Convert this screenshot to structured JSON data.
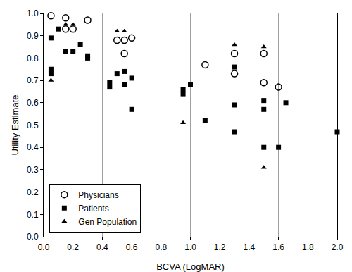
{
  "chart_data": {
    "type": "scatter",
    "x_label": "BCVA (LogMAR)",
    "y_label": "Utility Estimate",
    "xlim": [
      0,
      2.0
    ],
    "ylim": [
      0,
      1.0
    ],
    "xticks": [
      {
        "value": 0,
        "label": "0.0"
      },
      {
        "value": 0.2,
        "label": "0.2"
      },
      {
        "value": 0.4,
        "label": "0.4"
      },
      {
        "value": 0.6,
        "label": "0.6"
      },
      {
        "value": 0.8,
        "label": "0.8"
      },
      {
        "value": 1.0,
        "label": "1.0"
      },
      {
        "value": 1.2,
        "label": "1.2"
      },
      {
        "value": 1.4,
        "label": "1.4"
      },
      {
        "value": 1.6,
        "label": "1.6"
      },
      {
        "value": 1.8,
        "label": "1.8"
      },
      {
        "value": 2.0,
        "label": "2.0"
      }
    ],
    "yticks": [
      {
        "value": 0,
        "label": "0.0"
      },
      {
        "value": 0.1,
        "label": "0.1"
      },
      {
        "value": 0.2,
        "label": "0.2"
      },
      {
        "value": 0.3,
        "label": "0.3"
      },
      {
        "value": 0.4,
        "label": "0.4"
      },
      {
        "value": 0.5,
        "label": "0.5"
      },
      {
        "value": 0.6,
        "label": "0.6"
      },
      {
        "value": 0.7,
        "label": "0.7"
      },
      {
        "value": 0.8,
        "label": "0.8"
      },
      {
        "value": 0.9,
        "label": "0.9"
      },
      {
        "value": 1.0,
        "label": "1.0"
      }
    ],
    "grid": "x",
    "legend": "lower left",
    "series": [
      {
        "name": "Physicians",
        "color": "#000000",
        "marker": "circle-open",
        "x": [
          0.05,
          0.15,
          0.15,
          0.2,
          0.3,
          0.5,
          0.55,
          0.6,
          0.55,
          1.1,
          1.3,
          1.3,
          1.5,
          1.5,
          1.6
        ],
        "values": [
          0.99,
          0.98,
          0.93,
          0.93,
          0.97,
          0.88,
          0.88,
          0.89,
          0.82,
          0.77,
          0.82,
          0.73,
          0.82,
          0.69,
          0.67
        ]
      },
      {
        "name": "Patients",
        "color": "#000000",
        "marker": "square",
        "x": [
          0.05,
          0.05,
          0.05,
          0.1,
          0.15,
          0.2,
          0.25,
          0.3,
          0.3,
          0.45,
          0.45,
          0.5,
          0.55,
          0.55,
          0.6,
          0.6,
          0.95,
          0.95,
          1.0,
          1.1,
          1.3,
          1.3,
          1.3,
          1.5,
          1.5,
          1.5,
          1.6,
          1.65,
          2.0
        ],
        "values": [
          0.89,
          0.75,
          0.73,
          0.93,
          0.83,
          0.83,
          0.86,
          0.81,
          0.8,
          0.69,
          0.67,
          0.73,
          0.74,
          0.68,
          0.71,
          0.57,
          0.66,
          0.64,
          0.68,
          0.52,
          0.76,
          0.59,
          0.47,
          0.61,
          0.57,
          0.4,
          0.4,
          0.6,
          0.47
        ]
      },
      {
        "name": "Gen Population",
        "color": "#000000",
        "marker": "triangle-up",
        "x": [
          0.05,
          0.15,
          0.2,
          0.5,
          0.55,
          0.95,
          1.3,
          1.5,
          1.5
        ],
        "values": [
          0.7,
          0.95,
          0.95,
          0.92,
          0.92,
          0.51,
          0.86,
          0.85,
          0.31
        ]
      }
    ]
  }
}
